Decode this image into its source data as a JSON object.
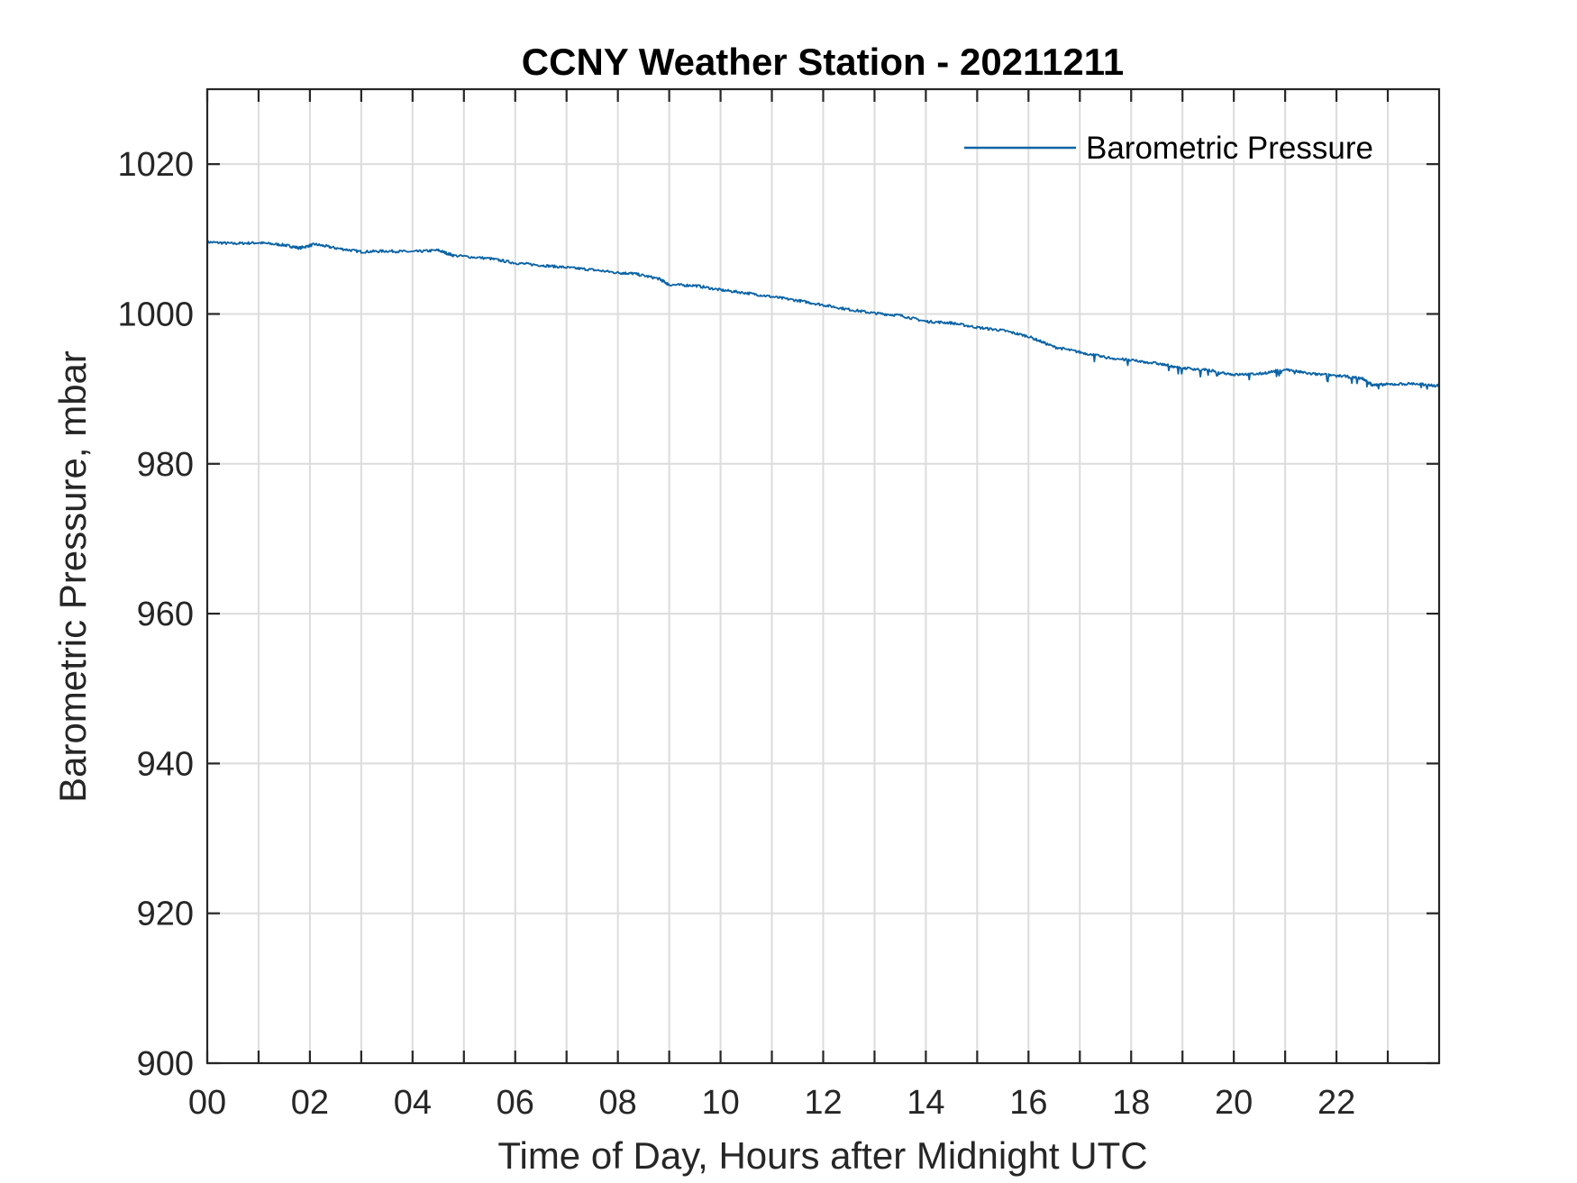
{
  "chart_data": {
    "type": "line",
    "title": "CCNY Weather Station - 20211211",
    "xlabel": "Time of Day, Hours after Midnight UTC",
    "ylabel": "Barometric Pressure, mbar",
    "xlim": [
      0,
      24
    ],
    "ylim": [
      900,
      1030
    ],
    "x_ticks": [
      0,
      2,
      4,
      6,
      8,
      10,
      12,
      14,
      16,
      18,
      20,
      22
    ],
    "x_tick_labels": [
      "00",
      "02",
      "04",
      "06",
      "08",
      "10",
      "12",
      "14",
      "16",
      "18",
      "20",
      "22"
    ],
    "x_minor_gridlines": [
      1,
      3,
      5,
      7,
      9,
      11,
      13,
      15,
      17,
      19,
      21,
      23
    ],
    "y_ticks": [
      900,
      920,
      940,
      960,
      980,
      1000,
      1020
    ],
    "y_tick_labels": [
      "900",
      "920",
      "940",
      "960",
      "980",
      "1000",
      "1020"
    ],
    "grid": true,
    "legend_position": "top-right",
    "series": [
      {
        "name": "Barometric Pressure",
        "color": "#0a63a6",
        "x": [
          0,
          0.5,
          1,
          1.5,
          1.8,
          2.1,
          2.5,
          3,
          3.5,
          4,
          4.5,
          4.8,
          5.5,
          6,
          6.5,
          7,
          7.5,
          8,
          8.3,
          8.8,
          9,
          9.5,
          10,
          10.5,
          11,
          11.5,
          12,
          12.5,
          13,
          13.5,
          14,
          14.5,
          15,
          15.5,
          16,
          16.5,
          17,
          17.5,
          18,
          18.5,
          19,
          19.5,
          20,
          20.5,
          21,
          21.5,
          22,
          22.5,
          22.7,
          23,
          23.5,
          24
        ],
        "y": [
          1009.6,
          1009.4,
          1009.5,
          1009.2,
          1008.8,
          1009.3,
          1008.8,
          1008.3,
          1008.4,
          1008.3,
          1008.5,
          1007.8,
          1007.4,
          1006.8,
          1006.5,
          1006.2,
          1005.9,
          1005.5,
          1005.4,
          1004.7,
          1003.9,
          1003.8,
          1003.2,
          1002.8,
          1002.3,
          1001.8,
          1001.2,
          1000.6,
          1000.1,
          999.8,
          999.0,
          998.8,
          998.2,
          997.8,
          997.0,
          995.6,
          994.9,
          994.2,
          993.8,
          993.4,
          992.8,
          992.5,
          991.9,
          992.0,
          992.6,
          992.0,
          991.8,
          991.4,
          990.5,
          990.6,
          990.7,
          990.4
        ]
      }
    ]
  }
}
